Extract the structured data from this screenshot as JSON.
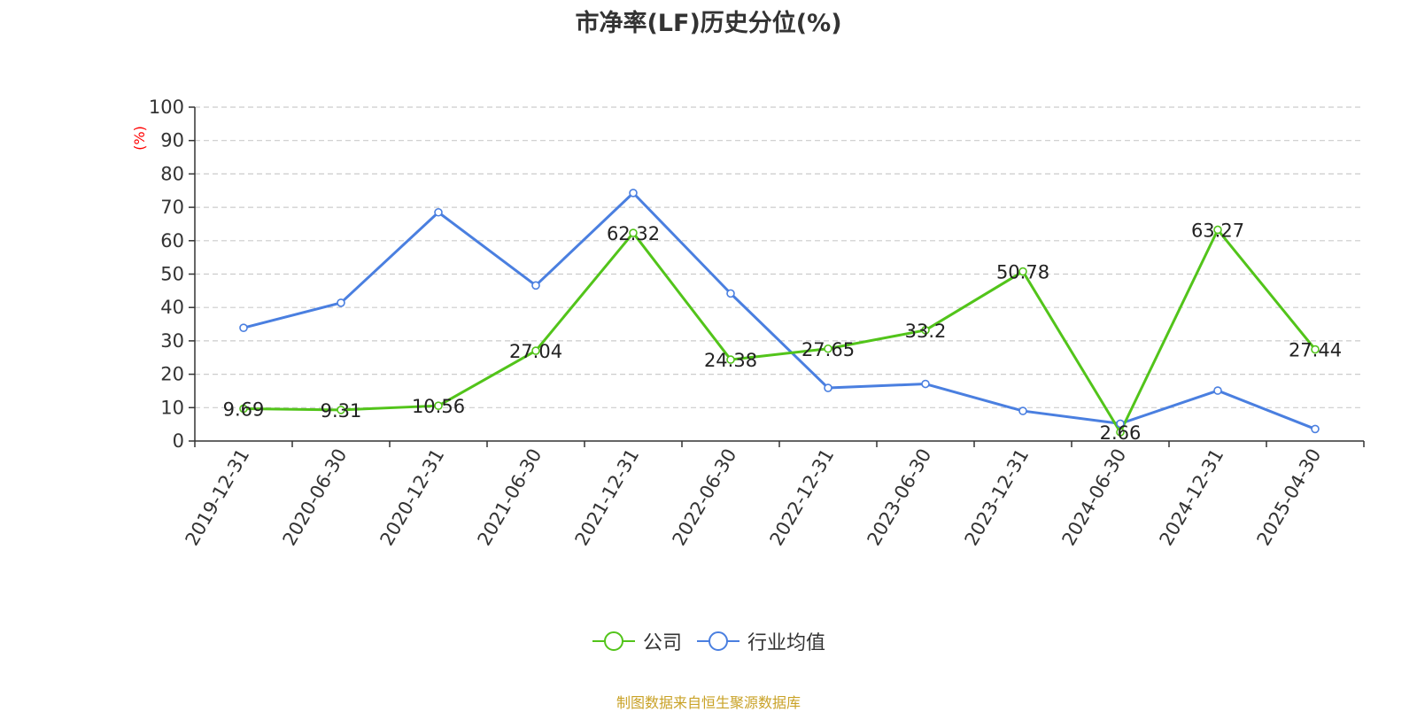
{
  "chart_data": {
    "type": "line",
    "title": "市净率(LF)历史分位(%)",
    "ylabel": "(%)",
    "xlabel": "",
    "ylim": [
      0,
      100
    ],
    "yticks": [
      0,
      10,
      20,
      30,
      40,
      50,
      60,
      70,
      80,
      90,
      100
    ],
    "grid": true,
    "legend_position": "bottom",
    "categories": [
      "2019-12-31",
      "2020-06-30",
      "2020-12-31",
      "2021-06-30",
      "2021-12-31",
      "2022-06-30",
      "2022-12-31",
      "2023-06-30",
      "2023-12-31",
      "2024-06-30",
      "2024-12-31",
      "2025-04-30"
    ],
    "series": [
      {
        "name": "公司",
        "color": "#52c41a",
        "values": [
          9.69,
          9.31,
          10.56,
          27.04,
          62.32,
          24.38,
          27.65,
          33.2,
          50.78,
          2.66,
          63.27,
          27.44
        ],
        "labels": [
          "9.69",
          "9.31",
          "10.56",
          "27.04",
          "62.32",
          "24.38",
          "27.65",
          "33.2",
          "50.78",
          "2.66",
          "63.27",
          "27.44"
        ]
      },
      {
        "name": "行业均值",
        "color": "#4a7fe0",
        "values": [
          33.9,
          41.4,
          68.5,
          46.6,
          74.3,
          44.2,
          15.9,
          17.1,
          9.0,
          5.2,
          15.1,
          3.6
        ]
      }
    ]
  },
  "source_text": "制图数据来自恒生聚源数据库",
  "axis_color": "#333333",
  "ylabel_color": "#ff0000",
  "grid_color": "#cccccc"
}
